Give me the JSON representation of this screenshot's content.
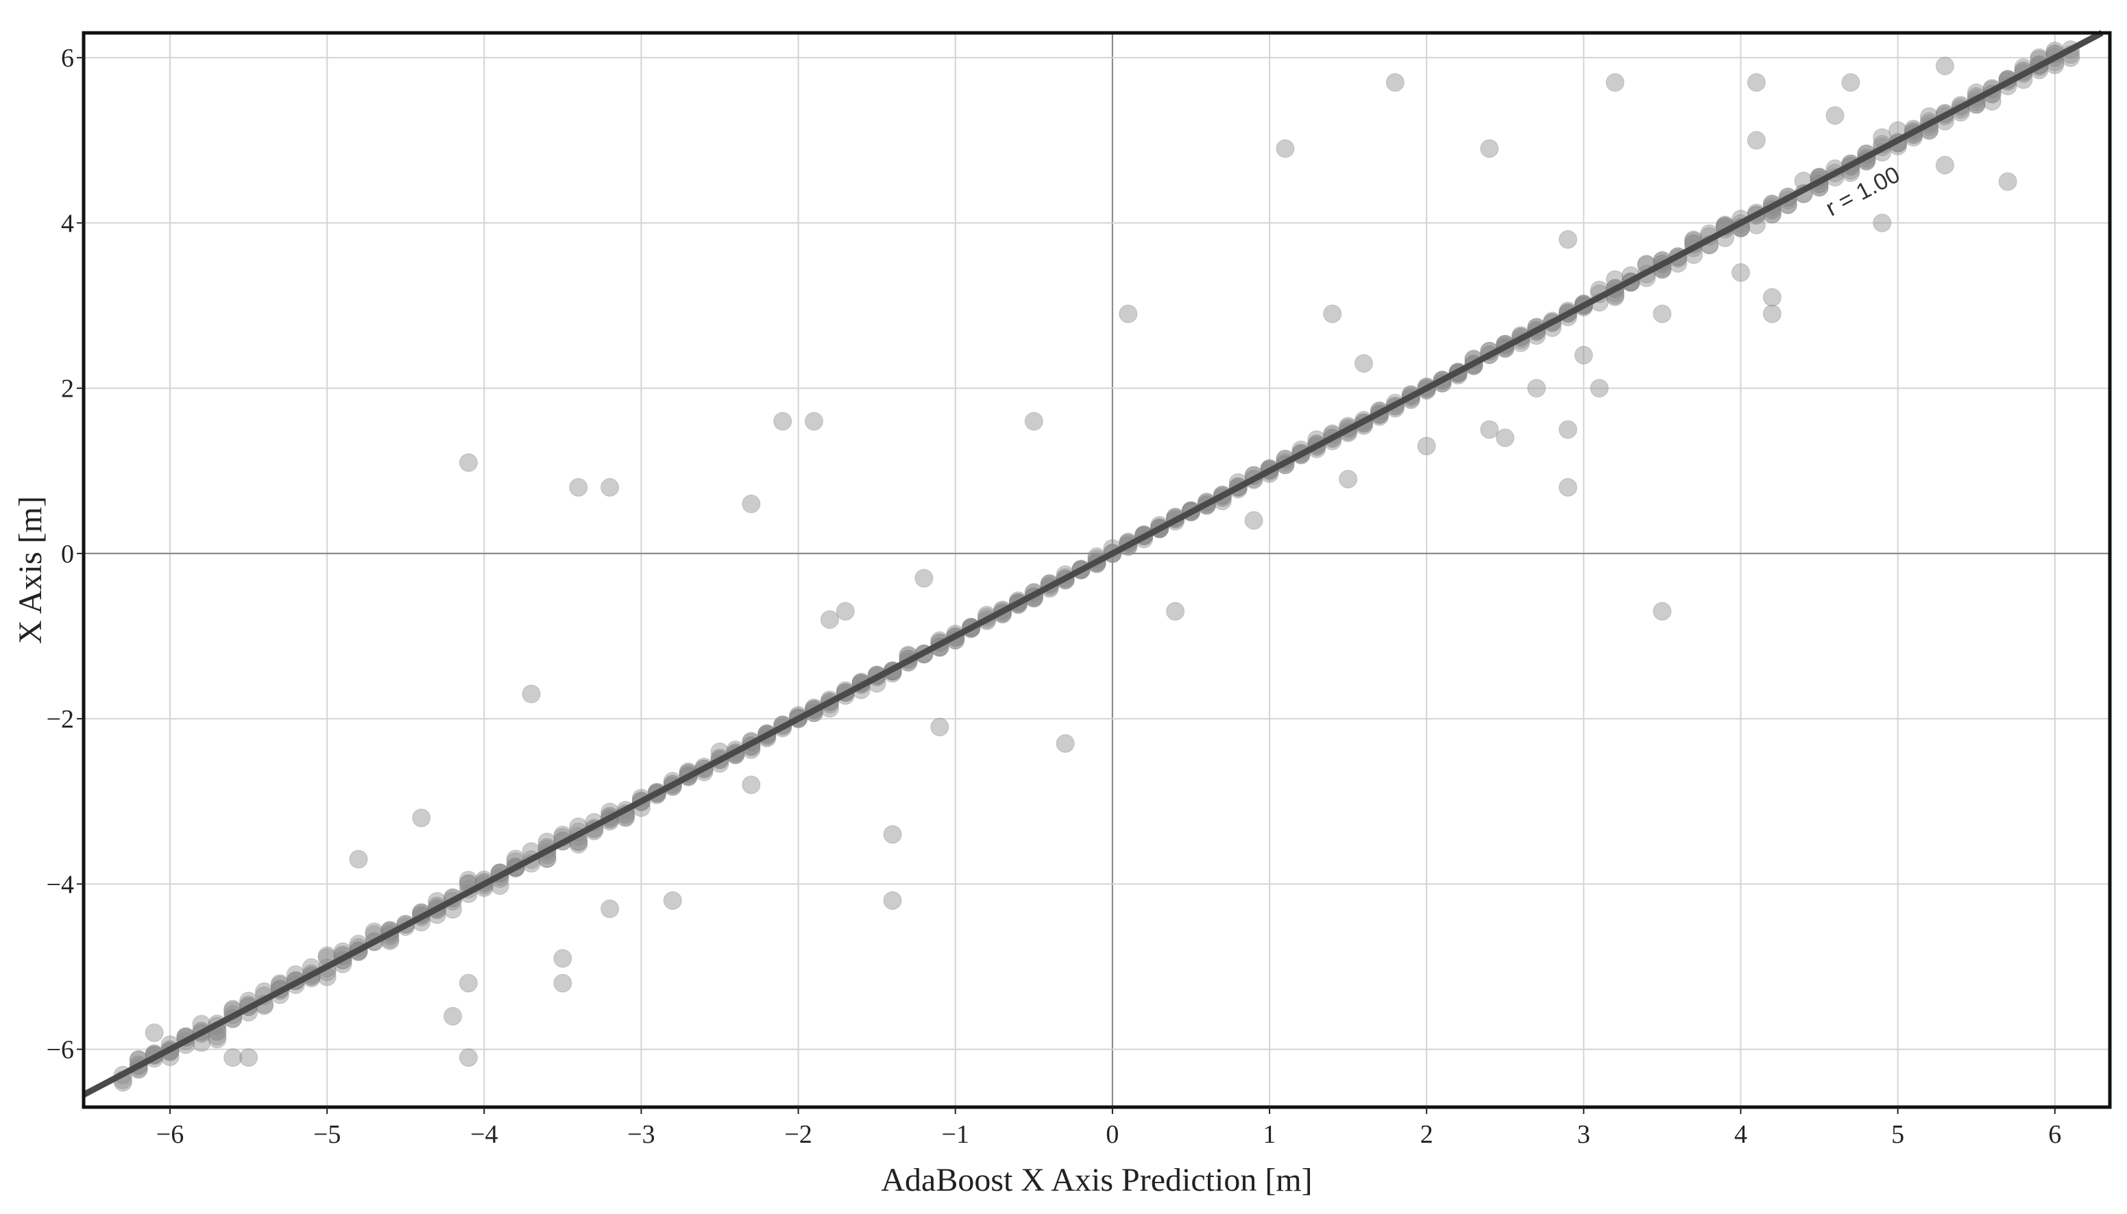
{
  "chart_data": {
    "type": "scatter",
    "title": "",
    "xlabel": "AdaBoost X Axis Prediction [m]",
    "ylabel": "X Axis [m]",
    "xlim": [
      -6.55,
      6.35
    ],
    "ylim": [
      -6.7,
      6.3
    ],
    "xticks": [
      -6,
      -5,
      -4,
      -3,
      -2,
      -1,
      0,
      1,
      2,
      3,
      4,
      5,
      6
    ],
    "yticks": [
      -6,
      -4,
      -2,
      0,
      2,
      4,
      6
    ],
    "xtick_labels": [
      "−6",
      "−5",
      "−4",
      "−3",
      "−2",
      "−1",
      "0",
      "1",
      "2",
      "3",
      "4",
      "5",
      "6"
    ],
    "ytick_labels": [
      "−6",
      "−4",
      "−2",
      "0",
      "2",
      "4",
      "6"
    ],
    "grid": true,
    "legend": "none",
    "fit_line": {
      "slope": 1.0,
      "intercept": 0.0,
      "label": "r = 1.00",
      "color": "#4a4a4a"
    },
    "marker_color": "#8f8f8f",
    "points_on_diagonal": {
      "description_x_range": [
        -6.3,
        6.1
      ],
      "count": 640,
      "spread": 0.12
    },
    "outliers": [
      [
        -4.1,
        1.1
      ],
      [
        -3.4,
        0.8
      ],
      [
        -3.2,
        0.8
      ],
      [
        -2.3,
        0.6
      ],
      [
        -2.1,
        1.6
      ],
      [
        -1.9,
        1.6
      ],
      [
        -0.5,
        1.6
      ],
      [
        0.1,
        2.9
      ],
      [
        1.1,
        4.9
      ],
      [
        1.8,
        5.7
      ],
      [
        2.4,
        4.9
      ],
      [
        3.2,
        5.7
      ],
      [
        4.1,
        5.7
      ],
      [
        4.1,
        5.0
      ],
      [
        1.4,
        2.9
      ],
      [
        2.9,
        0.8
      ],
      [
        3.5,
        -0.7
      ],
      [
        0.4,
        -0.7
      ],
      [
        -0.3,
        -2.3
      ],
      [
        -1.1,
        -2.1
      ],
      [
        -1.4,
        -3.4
      ],
      [
        -1.4,
        -4.2
      ],
      [
        -2.8,
        -4.2
      ],
      [
        -3.2,
        -4.3
      ],
      [
        -3.5,
        -4.9
      ],
      [
        -3.5,
        -5.2
      ],
      [
        -4.1,
        -5.2
      ],
      [
        -4.2,
        -5.6
      ],
      [
        -4.1,
        -6.1
      ],
      [
        -4.8,
        -3.7
      ],
      [
        -4.4,
        -3.2
      ],
      [
        -3.7,
        -1.7
      ],
      [
        -2.3,
        -2.8
      ],
      [
        -1.7,
        -0.7
      ],
      [
        -1.8,
        -0.8
      ],
      [
        -1.2,
        -0.3
      ],
      [
        0.9,
        0.4
      ],
      [
        1.5,
        0.9
      ],
      [
        1.6,
        2.3
      ],
      [
        2.0,
        1.3
      ],
      [
        2.4,
        1.5
      ],
      [
        2.5,
        1.4
      ],
      [
        2.9,
        1.5
      ],
      [
        2.9,
        3.8
      ],
      [
        3.0,
        2.4
      ],
      [
        3.1,
        2.0
      ],
      [
        2.7,
        2.0
      ],
      [
        3.5,
        2.9
      ],
      [
        4.0,
        3.4
      ],
      [
        4.2,
        2.9
      ],
      [
        4.2,
        3.1
      ],
      [
        5.3,
        4.7
      ],
      [
        5.7,
        4.5
      ],
      [
        4.9,
        4.0
      ],
      [
        4.6,
        5.3
      ],
      [
        4.7,
        5.7
      ],
      [
        5.3,
        5.9
      ],
      [
        5.9,
        6.0
      ],
      [
        6.1,
        6.0
      ],
      [
        -6.1,
        -5.8
      ],
      [
        -6.3,
        -6.4
      ],
      [
        -5.6,
        -6.1
      ],
      [
        -5.5,
        -6.1
      ]
    ]
  },
  "labels": {
    "xlabel": "AdaBoost X Axis Prediction [m]",
    "ylabel": "X Axis [m]",
    "annotation": "r = 1.00"
  }
}
